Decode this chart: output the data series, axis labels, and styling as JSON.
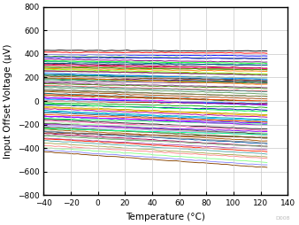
{
  "xlabel": "Temperature (°C)",
  "ylabel": "Input Offset Voltage (µV)",
  "xlim": [
    -40,
    140
  ],
  "ylim": [
    -800,
    800
  ],
  "xticks": [
    -40,
    -20,
    0,
    20,
    40,
    60,
    80,
    100,
    120,
    140
  ],
  "yticks": [
    -800,
    -600,
    -400,
    -200,
    0,
    200,
    400,
    600,
    800
  ],
  "background_color": "#ffffff",
  "grid_color": "#c8c8c8",
  "line_width": 0.65,
  "watermark": "D008",
  "axis_label_color": "#000000",
  "tick_label_color": "#000000",
  "font_size_axis": 7.5,
  "font_size_tick": 6.5,
  "x_start": -40,
  "x_end": 125,
  "seed": 12345,
  "n_lines": 80,
  "colors": [
    "#000000",
    "#ff0000",
    "#0000ff",
    "#008000",
    "#800080",
    "#008080",
    "#800000",
    "#808000",
    "#ff8000",
    "#808080",
    "#c0c0c0",
    "#004080",
    "#804000",
    "#400080",
    "#008040",
    "#804080",
    "#408000",
    "#ff6060",
    "#60a060",
    "#606060",
    "#a04000",
    "#006060",
    "#606000",
    "#ff00ff",
    "#00aaff",
    "#aa0000",
    "#00aa00",
    "#0000aa",
    "#aaaa00",
    "#aa00aa",
    "#00aaaa",
    "#555555",
    "#ff5500",
    "#5500ff",
    "#00ff55",
    "#ff55aa",
    "#aaffaa",
    "#ffaaaa",
    "#aaaaff",
    "#55aa00",
    "#aa5500",
    "#0055aa",
    "#aa0055",
    "#55aa55",
    "#aa55aa",
    "#55aaaa",
    "#aaaa55",
    "#ff8888",
    "#88ff88",
    "#8888ff",
    "#884400",
    "#004488",
    "#448800",
    "#880044",
    "#008844",
    "#448844",
    "#884488",
    "#448888",
    "#888844",
    "#ff4400",
    "#4400ff",
    "#00ff44",
    "#ffaa00",
    "#00aaff",
    "#aa00ff",
    "#222222",
    "#444444",
    "#666666",
    "#888888",
    "#aaaaaa",
    "#ff2200",
    "#2200ff",
    "#00ff22",
    "#ff0088",
    "#88ff00",
    "#0088ff",
    "#ff8800",
    "#8800ff",
    "#00ff88",
    "#884422"
  ],
  "y_starts": [
    430,
    415,
    395,
    378,
    355,
    335,
    315,
    295,
    275,
    258,
    240,
    225,
    210,
    195,
    180,
    165,
    148,
    132,
    115,
    98,
    82,
    65,
    48,
    32,
    15,
    0,
    -15,
    -32,
    -48,
    -65,
    -82,
    -98,
    -115,
    -132,
    -148,
    -165,
    -180,
    -195,
    -210,
    -225,
    -240,
    -258,
    -275,
    -295,
    -315,
    -335,
    -355,
    -378,
    -395,
    -415,
    -430,
    320,
    285,
    255,
    220,
    190,
    155,
    125,
    90,
    55,
    25,
    -25,
    -55,
    -90,
    -125,
    -155,
    -190,
    -220,
    -255,
    -285,
    -320,
    370,
    340,
    305,
    270,
    235,
    200,
    -200,
    -235,
    -270
  ],
  "y_drifts": [
    -5,
    -8,
    -12,
    -18,
    -25,
    -30,
    -35,
    -28,
    -22,
    -40,
    -45,
    -50,
    -38,
    -32,
    -20,
    -15,
    -42,
    -48,
    -55,
    -60,
    -65,
    -70,
    -52,
    -58,
    -35,
    -25,
    -40,
    -45,
    -68,
    -72,
    -75,
    -80,
    -62,
    -55,
    -50,
    -85,
    -90,
    -95,
    -78,
    -88,
    -100,
    -105,
    -110,
    -92,
    -98,
    -115,
    -120,
    -108,
    -125,
    -130,
    -135,
    -15,
    -20,
    -30,
    -25,
    -35,
    -40,
    -45,
    -50,
    -55,
    -60,
    -65,
    -70,
    -75,
    -80,
    -85,
    -90,
    -95,
    -100,
    -105,
    -110,
    -10,
    -20,
    -30,
    -40,
    -50,
    -60,
    -60,
    -50,
    -40
  ]
}
